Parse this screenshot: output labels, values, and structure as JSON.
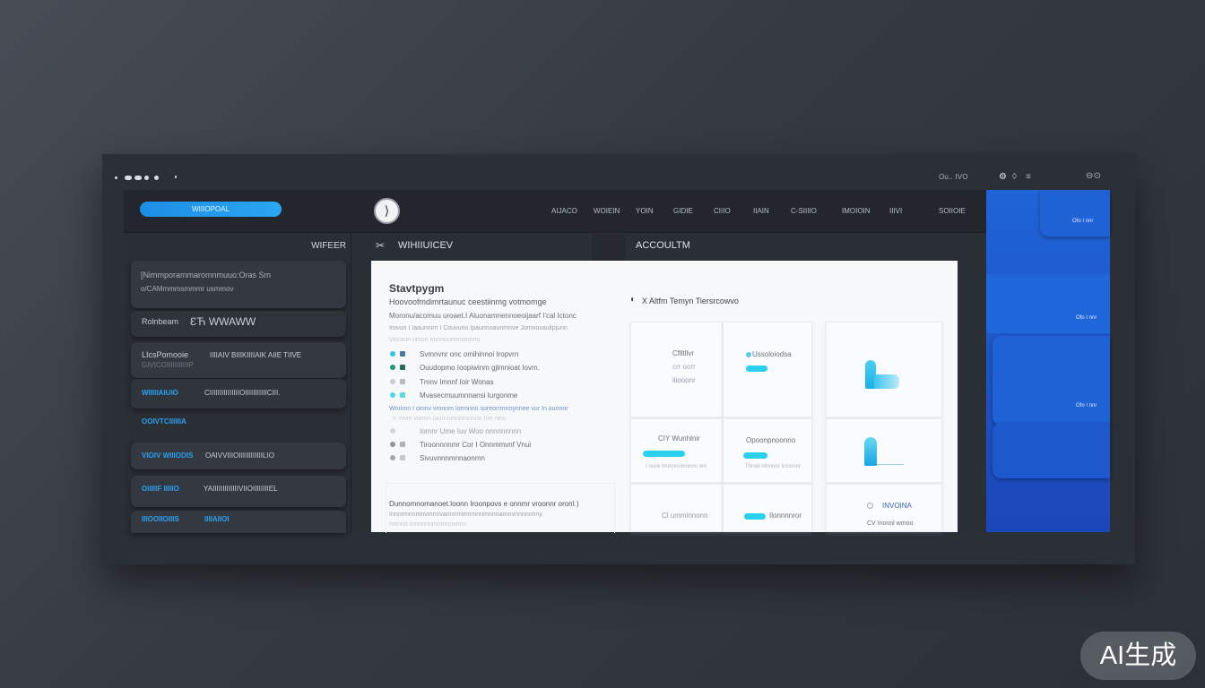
{
  "titlebar": {
    "right_text": "Ou.. IVO",
    "controls": "⊖⊙"
  },
  "header": {
    "primary_button": "WIIIOPOAL",
    "nav": [
      "AIJACO",
      "WOIEIN",
      "YOIN",
      "GIDIE",
      "CIIIO",
      "IIAIN",
      "C-SIIIIO",
      "IMOIOIN",
      "IIIVI",
      "SOIIOIE"
    ]
  },
  "sidebar": {
    "title": "WIFEER",
    "items": [
      {
        "line1": "[Nimmporammaromnmuuo:Oras  Sm",
        "line2": "o/CAMmmmsmmmr usmmov"
      },
      {
        "label": "Rolnbeam",
        "value": "ƐЋ  WWAWW"
      },
      {
        "label": "LIcsPomooie",
        "sub": "GIVICOIIIIIIIIIIIP",
        "value": "IIIIAIV BIIIKIIIIAIK AIIE TIIVE"
      },
      {
        "label": "WIIIIIAIUIO",
        "value": "CIIIIIIIIIIIIIIIOIIIIIIIIIIICIII."
      },
      {
        "label": "OOIVTCIIIIIIA"
      },
      {
        "label": "VIOIV  WIIIODIS",
        "value": "OAIVVIIIOIIIIIIIIIIIILIO"
      },
      {
        "label": "OIIIIIF IIIIIO",
        "value": "YAIIIIIIIIIIIIIVIIOIIIIIIIIEL"
      },
      {
        "label": "IIIOOIIOIIIS",
        "value": "IIIIAIIOI"
      }
    ]
  },
  "center": {
    "tab_title": "WIHIIUICEV",
    "account_title": "ACCOULTM"
  },
  "content": {
    "title": "Stavtpygm",
    "subtitle": "Hoovoofmdimrtaunuc  ceestiinmg votmomge",
    "desc": [
      "Moronu/acomuu  uroaet.I  Aluonamnennoeoijaarf  I'cal Ictonc",
      "Irovun I Iaaunnirn  I Couvuno Ipaunnoaunmnve  Jomnovaulipjunn",
      "Vioraun onum Imnnounnniounnu"
    ],
    "list": [
      {
        "text": "Svmnvnr onc omihinnoi Iropvrn",
        "color": "#2ec6e6"
      },
      {
        "text": "Ouudopmo  Ioopiwinm gjlmnioat  Iovm.",
        "color": "#1e9a78"
      },
      {
        "text": "Tmnv Imnnf Ioir  Wonas",
        "color": "#c8ccd2"
      },
      {
        "text": "Mvasecmuumnnansi Iurgonme",
        "color": "#4cd6e6"
      }
    ],
    "link": "Wnrimn I omnv vmnnm  Iormnnn soreorrmnoynnee  vur In ounnnr",
    "faint": "Ir mvm vormn Iaunnunnnrnnnnn Irre nmr",
    "list2": [
      "Iomnr Ume  Iuv  Woo nnnnnnnnn",
      "Tiroonnnnmr Cor  I Onnmmvnf  Vnui",
      "Sivuvnnnmnnaonmn"
    ],
    "footer": [
      "Dunnomnomanoet.Ioonn  Iroonpovs e  onnmr vroonnr oronI.)",
      "Innnrmnnmnvmnnvannnrnmnmnnmnnnarnnvnnnnnnny",
      "Ivvnno  Innnnnnmmnnnvnnn"
    ],
    "grid_title": "X Altfm Temyn Tiersrcowvo",
    "cells": {
      "c1a": [
        "Cflltllvr",
        "crr oorr",
        "iiiooonr"
      ],
      "c2a": "Ussoloiodsa",
      "c1b": "CIY Wunhlnir",
      "c1b_sub": "I ouuk Immnnnmnnnn nnr",
      "c2b": "Opoonpnoonno",
      "c2b_sub": "Throkl nfnnnnr  Iinnonnr",
      "c1c": "Cl ummlnnonn",
      "c2c": "Ilonnnnror",
      "c3c": "INVOINA",
      "c3c_sub": "CV Inonnl  wmoo"
    }
  },
  "right_panel": {
    "labels": [
      "Ofo  I nnr",
      "Ofo  I nnr",
      "Ofo  I nnr"
    ]
  },
  "watermark": "AI生成",
  "colors": {
    "accent": "#2aa0ee",
    "cyan": "#2bd0ee",
    "blue_panel": "#1e62d6"
  }
}
